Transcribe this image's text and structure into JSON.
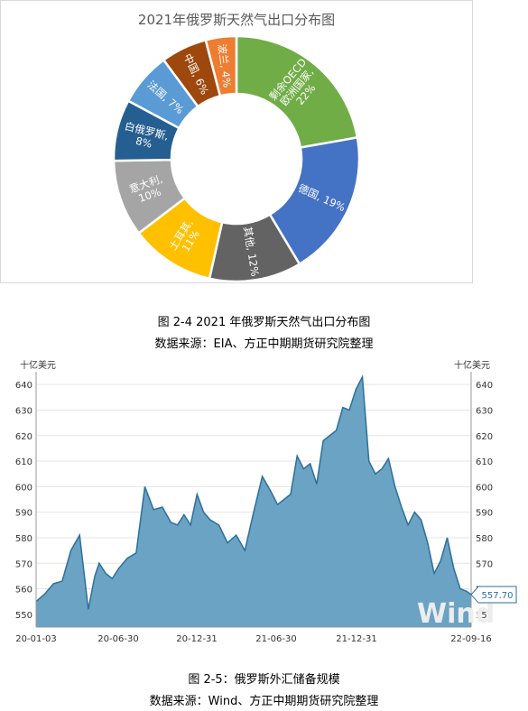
{
  "chart_data": [
    {
      "type": "pie",
      "variant": "donut",
      "title": "2021年俄罗斯天然气出口分布图",
      "slices": [
        {
          "label": "剩余OECD欧洲国家",
          "display": [
            "剩余OECD",
            "欧洲国家,",
            "22%"
          ],
          "value": 22,
          "color": "#70ad47"
        },
        {
          "label": "德国",
          "display": [
            "德国, 19%"
          ],
          "value": 19,
          "color": "#4472c4"
        },
        {
          "label": "其他",
          "display": [
            "其他, 12%"
          ],
          "value": 12,
          "color": "#636363"
        },
        {
          "label": "土耳其",
          "display": [
            "土耳其,",
            "11%"
          ],
          "value": 11,
          "color": "#ffc000"
        },
        {
          "label": "意大利",
          "display": [
            "意大利,",
            "10%"
          ],
          "value": 10,
          "color": "#a5a5a5"
        },
        {
          "label": "白俄罗斯",
          "display": [
            "白俄罗斯,",
            "8%"
          ],
          "value": 8,
          "color": "#255e91"
        },
        {
          "label": "法国",
          "display": [
            "法国, 7%"
          ],
          "value": 7,
          "color": "#5b9bd5"
        },
        {
          "label": "中国",
          "display": [
            "中国, 6%"
          ],
          "value": 6,
          "color": "#9e480e"
        },
        {
          "label": "波兰",
          "display": [
            "波兰, 4%"
          ],
          "value": 4,
          "color": "#ed7d31"
        }
      ]
    },
    {
      "type": "area",
      "ylabel_left": "十亿美元",
      "ylabel_right": "十亿美元",
      "ylim": [
        545,
        645
      ],
      "yticks": [
        550,
        560,
        570,
        580,
        590,
        600,
        610,
        620,
        630,
        640
      ],
      "xticks": [
        "20-01-03",
        "20-06-30",
        "20-12-31",
        "21-06-30",
        "21-12-31",
        "22-09-16"
      ],
      "last_value_label": "557.70",
      "fill_color": "#6aa3c4",
      "line_color": "#2e6f99",
      "x": [
        0,
        0.02,
        0.04,
        0.06,
        0.08,
        0.1,
        0.12,
        0.135,
        0.145,
        0.16,
        0.175,
        0.19,
        0.21,
        0.23,
        0.25,
        0.27,
        0.29,
        0.31,
        0.325,
        0.34,
        0.355,
        0.37,
        0.385,
        0.4,
        0.42,
        0.44,
        0.46,
        0.48,
        0.5,
        0.52,
        0.54,
        0.555,
        0.57,
        0.585,
        0.6,
        0.615,
        0.63,
        0.645,
        0.66,
        0.675,
        0.69,
        0.705,
        0.72,
        0.735,
        0.75,
        0.765,
        0.78,
        0.795,
        0.81,
        0.825,
        0.84,
        0.855,
        0.87,
        0.885,
        0.9,
        0.915,
        0.93,
        0.945,
        0.96,
        0.975,
        0.99,
        1.0
      ],
      "values": [
        555,
        558,
        562,
        563,
        575,
        581,
        552,
        565,
        570,
        566,
        564,
        568,
        572,
        574,
        600,
        591,
        592,
        586,
        585,
        589,
        585,
        597,
        590,
        587,
        585,
        578,
        581,
        575,
        590,
        604,
        598,
        593,
        595,
        597,
        612,
        607,
        609,
        601,
        618,
        620,
        622,
        631,
        630,
        638,
        643,
        610,
        605,
        607,
        611,
        600,
        592,
        585,
        590,
        587,
        578,
        566,
        571,
        580,
        568,
        560,
        559,
        557.7
      ]
    }
  ],
  "captions": {
    "fig1_title": "图 2-4 2021 年俄罗斯天然气出口分布图",
    "fig1_source": "数据来源：EIA、方正中期期货研究院整理",
    "fig2_title": "图 2-5：俄罗斯外汇储备规模",
    "fig2_source": "数据来源：Wind、方正中期期货研究院整理"
  },
  "watermark": "Wind"
}
